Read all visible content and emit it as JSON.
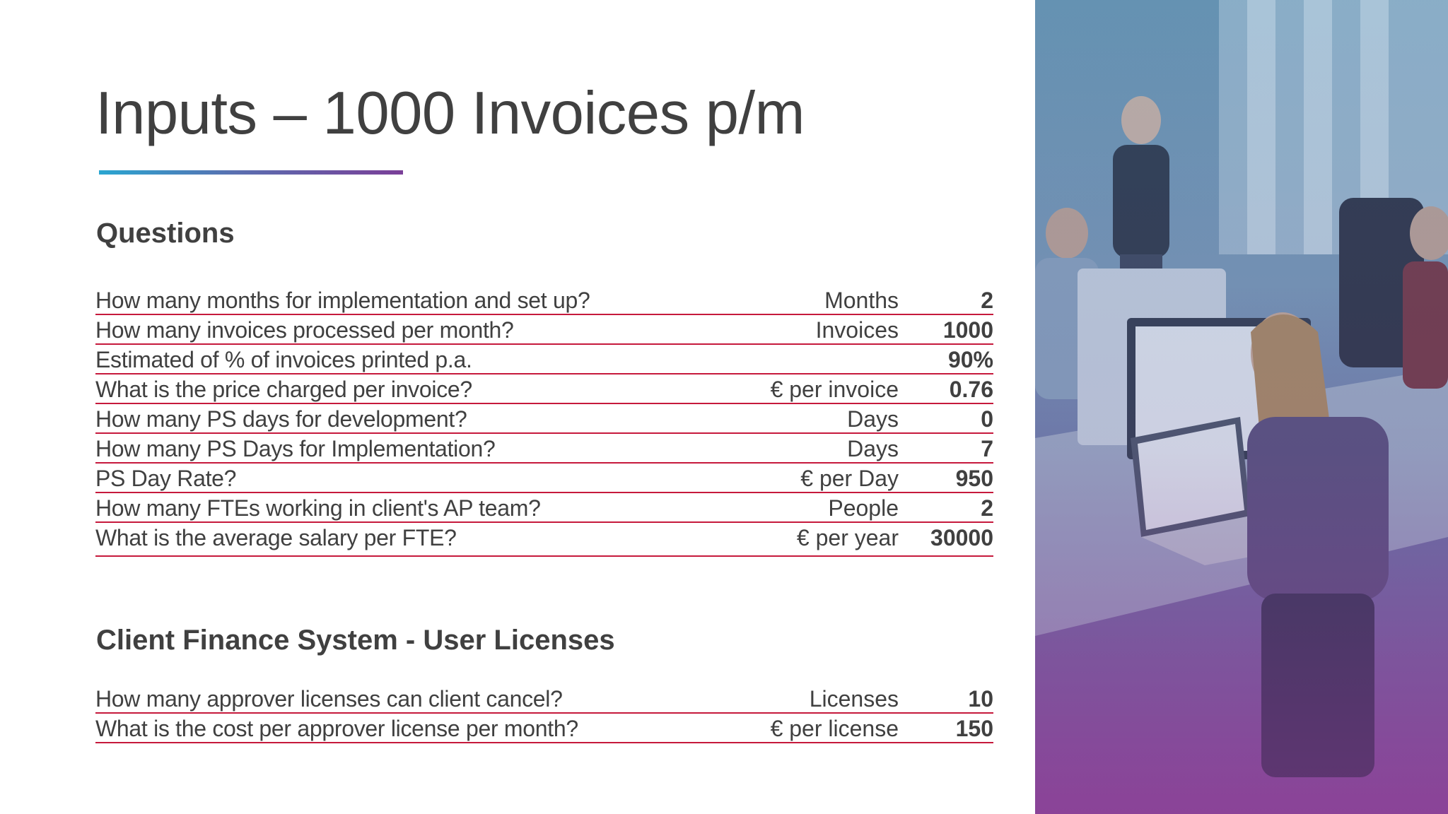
{
  "title": "Inputs – 1000 Invoices p/m",
  "colors": {
    "row_rule": "#c6193c",
    "text": "#404040",
    "accent_gradient": [
      "#2aa6d1",
      "#7a3f98"
    ]
  },
  "questions_section": {
    "heading": "Questions",
    "rows": [
      {
        "question": "How many months for implementation and set up?",
        "unit": "Months",
        "value": "2"
      },
      {
        "question": "How many invoices processed per month?",
        "unit": "Invoices",
        "value": "1000"
      },
      {
        "question": "Estimated of % of invoices printed p.a.",
        "unit": "",
        "value": "90%"
      },
      {
        "question": "What is the price charged per invoice?",
        "unit": "€ per invoice",
        "value": "0.76"
      },
      {
        "question": "How many PS days for development?",
        "unit": "Days",
        "value": "0"
      },
      {
        "question": "How many PS Days for Implementation?",
        "unit": "Days",
        "value": "7"
      },
      {
        "question": "PS Day Rate?",
        "unit": "€ per Day",
        "value": "950"
      },
      {
        "question": "How many FTEs working in client's AP team?",
        "unit": "People",
        "value": "2"
      },
      {
        "question": "What is the average salary per FTE?",
        "unit": "€ per year",
        "value": "30000"
      }
    ]
  },
  "licenses_section": {
    "heading": "Client Finance System - User Licenses",
    "rows": [
      {
        "question": "How many approver licenses can client cancel?",
        "unit": "Licenses",
        "value": "10"
      },
      {
        "question": "What is the cost per approver license per month?",
        "unit": "€ per license",
        "value": "150"
      }
    ]
  }
}
